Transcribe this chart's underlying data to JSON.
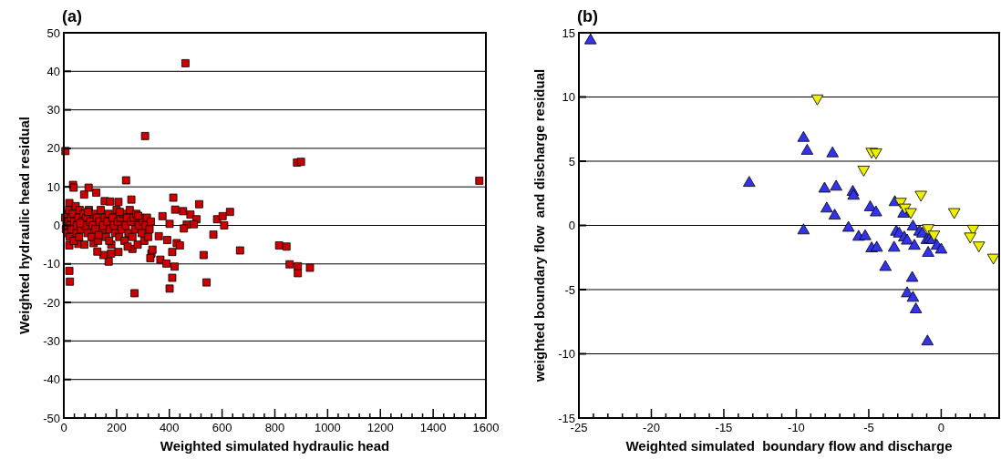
{
  "chart_data": [
    {
      "type": "scatter",
      "title": "(a)",
      "xlabel": "Weighted simulated hydraulic head",
      "ylabel": "Weighted hydraulic head residual",
      "xlim": [
        0,
        1600
      ],
      "ylim": [
        -50,
        50
      ],
      "xticks": [
        0,
        {
          "value": 40,
          "label": null
        },
        {
          "value": 80,
          "label": null
        },
        {
          "value": 120,
          "label": null
        },
        {
          "value": 160,
          "label": null
        },
        200,
        {
          "value": 240,
          "label": null
        },
        {
          "value": 280,
          "label": null
        },
        {
          "value": 320,
          "label": null
        },
        {
          "value": 360,
          "label": null
        },
        400,
        {
          "value": 440,
          "label": null
        },
        {
          "value": 480,
          "label": null
        },
        {
          "value": 520,
          "label": null
        },
        {
          "value": 560,
          "label": null
        },
        600,
        {
          "value": 640,
          "label": null
        },
        {
          "value": 680,
          "label": null
        },
        {
          "value": 720,
          "label": null
        },
        {
          "value": 760,
          "label": null
        },
        800,
        {
          "value": 840,
          "label": null
        },
        {
          "value": 880,
          "label": null
        },
        {
          "value": 920,
          "label": null
        },
        {
          "value": 960,
          "label": null
        },
        1000,
        {
          "value": 1040,
          "label": null
        },
        {
          "value": 1080,
          "label": null
        },
        {
          "value": 1120,
          "label": null
        },
        {
          "value": 1160,
          "label": null
        },
        1200,
        {
          "value": 1240,
          "label": null
        },
        {
          "value": 1280,
          "label": null
        },
        {
          "value": 1320,
          "label": null
        },
        {
          "value": 1360,
          "label": null
        },
        1400,
        {
          "value": 1440,
          "label": null
        },
        {
          "value": 1480,
          "label": null
        },
        {
          "value": 1520,
          "label": null
        },
        {
          "value": 1560,
          "label": null
        },
        1600
      ],
      "yticks": [
        -50,
        -40,
        -30,
        -20,
        -10,
        0,
        10,
        20,
        30,
        40,
        50
      ],
      "grid": "y",
      "series": [
        {
          "color": "#cc0000",
          "marker": "square",
          "x": [
            461,
            308,
            6,
            884,
            899,
            236,
            35,
            37,
            94,
            77,
            123,
            415,
            513,
            630,
            256,
            155,
            175,
            207,
            21,
            422,
            452,
            480,
            374,
            503,
            581,
            602,
            608,
            401,
            466,
            493,
            455,
            567,
            360,
            392,
            428,
            440,
            668,
            816,
            844,
            530,
            411,
            332,
            366,
            389,
            420,
            411,
            401,
            541,
            268,
            21,
            23,
            856,
            887,
            887,
            933,
            336,
            328,
            207,
            179,
            170,
            150,
            127,
            260,
            21,
            55,
            113,
            1575,
            5,
            8,
            10,
            12,
            15,
            18,
            20,
            22,
            25,
            28,
            30,
            35,
            38,
            40,
            45,
            48,
            50,
            55,
            58,
            60,
            65,
            70,
            75,
            78,
            80,
            85,
            90,
            95,
            100,
            105,
            110,
            115,
            120,
            125,
            130,
            135,
            140,
            145,
            150,
            155,
            160,
            165,
            170,
            175,
            180,
            185,
            190,
            195,
            200,
            205,
            210,
            215,
            220,
            225,
            230,
            235,
            240,
            245,
            250,
            255,
            260,
            265,
            270,
            275,
            280,
            285,
            290,
            295,
            300,
            305,
            310,
            315,
            320,
            325,
            330,
            62,
            92,
            132,
            172,
            212,
            242,
            282
          ],
          "values": [
            42.1,
            23.2,
            19.3,
            16.3,
            16.5,
            11.7,
            10.5,
            9.8,
            9.8,
            8,
            8.5,
            7.2,
            5.5,
            3.5,
            6.7,
            6.3,
            6.2,
            6.1,
            5.8,
            4.1,
            3.7,
            2.8,
            2.4,
            1.6,
            1.6,
            2.4,
            0,
            0.4,
            0.2,
            0.3,
            -0.8,
            -2.4,
            -2.8,
            -3.8,
            -4.6,
            -5.2,
            -6.5,
            -5.2,
            -5.5,
            -7.7,
            -6.9,
            -7.3,
            -8.9,
            -9.9,
            -10.7,
            -13.6,
            -16.4,
            -14.8,
            -17.6,
            -11.8,
            -14.6,
            -10.1,
            -10.6,
            -12.4,
            -11,
            -6.3,
            -8.5,
            -6.9,
            -7.3,
            -9.4,
            -7.7,
            -6.8,
            -6.1,
            -5.2,
            -4.8,
            -4.6,
            11.6,
            2,
            -1,
            0,
            3,
            -2,
            1,
            4,
            -3,
            0,
            2,
            -1,
            3,
            -4,
            1,
            5,
            -2,
            0,
            2,
            -3,
            4,
            -1,
            1,
            3,
            -5,
            0,
            2,
            -2,
            4,
            1,
            -3,
            0,
            3,
            -1,
            2,
            -4,
            1,
            4,
            -2,
            0,
            2,
            -3,
            1,
            3,
            -1,
            -5,
            2,
            0,
            -2,
            4,
            1,
            -3,
            2,
            -1,
            3,
            -4,
            0,
            2,
            -2,
            4,
            1,
            -3,
            2,
            -1,
            3,
            -5,
            0,
            2,
            -2,
            1,
            -4,
            0,
            2,
            -3,
            -1,
            1,
            0.5,
            3.5,
            -2.5,
            -4,
            3.5,
            -5.5,
            2.5
          ]
        }
      ]
    },
    {
      "type": "scatter",
      "title": "(b)",
      "xlabel": "Weighted simulated  boundary flow and discharge",
      "ylabel": "weighted boundary flow  and discharge residual",
      "xlim": [
        -25,
        4
      ],
      "ylim": [
        -15,
        15
      ],
      "xticks": [
        -25,
        {
          "value": -24,
          "label": null
        },
        {
          "value": -23,
          "label": null
        },
        {
          "value": -22,
          "label": null
        },
        {
          "value": -21,
          "label": null
        },
        -20,
        {
          "value": -19,
          "label": null
        },
        {
          "value": -18,
          "label": null
        },
        {
          "value": -17,
          "label": null
        },
        {
          "value": -16,
          "label": null
        },
        -15,
        {
          "value": -14,
          "label": null
        },
        {
          "value": -13,
          "label": null
        },
        {
          "value": -12,
          "label": null
        },
        {
          "value": -11,
          "label": null
        },
        -10,
        {
          "value": -9,
          "label": null
        },
        {
          "value": -8,
          "label": null
        },
        {
          "value": -7,
          "label": null
        },
        {
          "value": -6,
          "label": null
        },
        -5,
        {
          "value": -4,
          "label": null
        },
        {
          "value": -3,
          "label": null
        },
        {
          "value": -2,
          "label": null
        },
        {
          "value": -1,
          "label": null
        },
        0,
        {
          "value": 1,
          "label": null
        },
        {
          "value": 2,
          "label": null
        },
        {
          "value": 3,
          "label": null
        }
      ],
      "yticks": [
        -15,
        -10,
        -5,
        0,
        5,
        10,
        15
      ],
      "grid": "y",
      "series": [
        {
          "color": "#3333ee",
          "marker": "triangle",
          "x": [
            -24.2,
            -13.25,
            -9.5,
            -9.25,
            -9.5,
            -7.5,
            -8.05,
            -7.25,
            -7.9,
            -7.35,
            -6.1,
            -6.05,
            -6.4,
            -5.7,
            -5.25,
            -4.9,
            -4.5,
            -4.8,
            -4.45,
            -3.85,
            -3.2,
            -2.6,
            -3.1,
            -2.9,
            -2.55,
            -2.35,
            -3.25,
            -1.95,
            -1.85,
            -1.5,
            -1.3,
            -1,
            -0.8,
            -0.6,
            -0.3,
            0,
            -0.9,
            -2,
            -2.35,
            -1.95,
            -1.75,
            -0.95
          ],
          "values": [
            14.4,
            3.3,
            6.8,
            5.8,
            -0.4,
            5.6,
            2.85,
            3,
            1.3,
            0.75,
            2.6,
            2.3,
            -0.2,
            -0.9,
            -0.85,
            1.4,
            1,
            -1.8,
            -1.75,
            -3.25,
            1.8,
            0.9,
            -0.5,
            -0.65,
            -0.95,
            -1.2,
            -1.75,
            -0.1,
            -1.6,
            -0.5,
            -0.65,
            -1.15,
            -1.1,
            -1.15,
            -1.6,
            -1.9,
            -2.15,
            -4.1,
            -5.3,
            -5.65,
            -6.55,
            -9.05
          ]
        },
        {
          "color": "#eeee00",
          "marker": "triangle-down",
          "x": [
            -8.55,
            -4.8,
            -4.5,
            -5.35,
            -1.4,
            -2.8,
            -2.5,
            -2.1,
            0.9,
            -0.9,
            -0.5,
            2.2,
            2,
            2.6,
            3.6
          ],
          "values": [
            9.9,
            5.75,
            5.7,
            4.35,
            2.4,
            1.85,
            1.4,
            1.05,
            1.05,
            -0.2,
            -0.7,
            -0.25,
            -0.85,
            -1.55,
            -2.5
          ]
        }
      ]
    }
  ]
}
